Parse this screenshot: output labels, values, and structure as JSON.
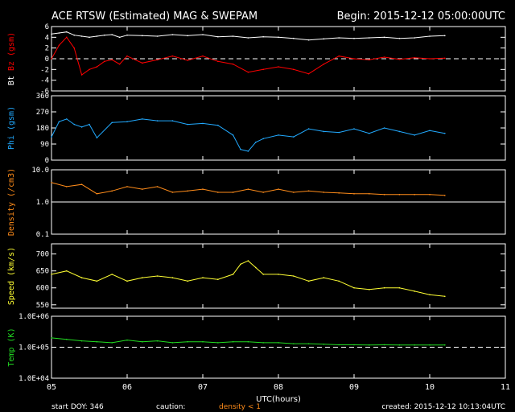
{
  "header": {
    "title": "ACE RTSW (Estimated) MAG & SWEPAM",
    "begin": "Begin: 2015-12-12 05:00:00UTC"
  },
  "footer": {
    "start_doy": "start DOY: 346",
    "caution": "caution:",
    "density_note": "density < 1",
    "created": "created: 2015-12-12 10:13:04UTC"
  },
  "colors": {
    "bt": "#ffffff",
    "bz": "#ff0000",
    "phi": "#22aaff",
    "density": "#ff8c1a",
    "speed": "#ffff33",
    "temp": "#22dd22"
  },
  "chart_data": [
    {
      "type": "line",
      "ylabel": "Bt Bz (gsm)",
      "ylim": [
        -6,
        6
      ],
      "yticks": [
        "-6",
        "-4",
        "-2",
        "0",
        "2",
        "4",
        "6"
      ],
      "x": [
        5.0,
        5.1,
        5.2,
        5.3,
        5.4,
        5.5,
        5.6,
        5.7,
        5.8,
        5.9,
        6.0,
        6.2,
        6.4,
        6.6,
        6.8,
        7.0,
        7.2,
        7.4,
        7.6,
        7.8,
        8.0,
        8.2,
        8.4,
        8.6,
        8.8,
        9.0,
        9.2,
        9.4,
        9.6,
        9.8,
        10.0,
        10.2
      ],
      "series": [
        {
          "name": "Bt",
          "values": [
            4.6,
            4.8,
            5.0,
            4.4,
            4.2,
            4.0,
            4.2,
            4.4,
            4.5,
            4.0,
            4.4,
            4.3,
            4.2,
            4.5,
            4.3,
            4.5,
            4.1,
            4.2,
            3.9,
            4.1,
            4.0,
            3.8,
            3.5,
            3.7,
            3.9,
            3.8,
            3.9,
            4.0,
            3.8,
            3.9,
            4.2,
            4.3
          ]
        },
        {
          "name": "Bz",
          "values": [
            0.0,
            2.5,
            4.0,
            2.0,
            -3.0,
            -2.0,
            -1.5,
            -0.5,
            -0.2,
            -1.0,
            0.5,
            -0.8,
            -0.2,
            0.5,
            -0.3,
            0.5,
            -0.5,
            -1.0,
            -2.5,
            -2.0,
            -1.5,
            -2.0,
            -2.8,
            -1.0,
            0.5,
            0.0,
            -0.2,
            0.3,
            -0.1,
            0.2,
            0.0,
            0.1
          ]
        }
      ]
    },
    {
      "type": "line",
      "ylabel": "Phi (gsm)",
      "ylim": [
        0,
        360
      ],
      "yticks": [
        "0",
        "90",
        "180",
        "270",
        "360"
      ],
      "x": [
        5.0,
        5.1,
        5.2,
        5.3,
        5.4,
        5.5,
        5.6,
        5.8,
        6.0,
        6.2,
        6.4,
        6.6,
        6.8,
        7.0,
        7.2,
        7.4,
        7.5,
        7.6,
        7.7,
        7.8,
        8.0,
        8.2,
        8.4,
        8.6,
        8.8,
        9.0,
        9.2,
        9.4,
        9.6,
        9.8,
        10.0,
        10.2
      ],
      "series": [
        {
          "name": "Phi",
          "values": [
            130,
            215,
            230,
            200,
            185,
            200,
            125,
            210,
            215,
            230,
            220,
            220,
            200,
            205,
            195,
            140,
            60,
            50,
            100,
            120,
            140,
            130,
            175,
            160,
            155,
            175,
            150,
            180,
            160,
            140,
            165,
            150
          ]
        }
      ]
    },
    {
      "type": "line",
      "ylabel": "Density (/cm3)",
      "yscale": "log",
      "ylim": [
        0.1,
        10.0
      ],
      "yticks": [
        "0.1",
        "1.0",
        "10.0"
      ],
      "x": [
        5.0,
        5.2,
        5.4,
        5.6,
        5.8,
        6.0,
        6.2,
        6.4,
        6.6,
        6.8,
        7.0,
        7.2,
        7.4,
        7.6,
        7.8,
        8.0,
        8.2,
        8.4,
        8.6,
        8.8,
        9.0,
        9.2,
        9.4,
        9.6,
        9.8,
        10.0,
        10.2
      ],
      "series": [
        {
          "name": "Density",
          "values": [
            4.0,
            3.0,
            3.5,
            1.8,
            2.2,
            3.0,
            2.5,
            3.0,
            2.0,
            2.2,
            2.5,
            2.0,
            2.0,
            2.5,
            2.0,
            2.5,
            2.0,
            2.2,
            2.0,
            1.9,
            1.8,
            1.8,
            1.7,
            1.7,
            1.7,
            1.7,
            1.6
          ]
        }
      ]
    },
    {
      "type": "line",
      "ylabel": "Speed (km/s)",
      "ylim": [
        540,
        730
      ],
      "yticks": [
        "550",
        "600",
        "650",
        "700"
      ],
      "x": [
        5.0,
        5.2,
        5.4,
        5.6,
        5.8,
        6.0,
        6.2,
        6.4,
        6.6,
        6.8,
        7.0,
        7.2,
        7.4,
        7.5,
        7.6,
        7.7,
        7.8,
        8.0,
        8.2,
        8.4,
        8.6,
        8.8,
        9.0,
        9.2,
        9.4,
        9.6,
        9.8,
        10.0,
        10.2
      ],
      "series": [
        {
          "name": "Speed",
          "values": [
            640,
            650,
            630,
            620,
            640,
            620,
            630,
            635,
            630,
            620,
            630,
            625,
            640,
            670,
            680,
            660,
            640,
            640,
            635,
            620,
            630,
            620,
            600,
            595,
            600,
            600,
            590,
            580,
            575
          ]
        }
      ]
    },
    {
      "type": "line",
      "ylabel": "Temp (K)",
      "yscale": "log",
      "ylim": [
        10000,
        1000000
      ],
      "yticks": [
        "1.0E+04",
        "1.0E+05",
        "1.0E+06"
      ],
      "x": [
        5.0,
        5.2,
        5.4,
        5.6,
        5.8,
        6.0,
        6.2,
        6.4,
        6.6,
        6.8,
        7.0,
        7.2,
        7.4,
        7.6,
        7.8,
        8.0,
        8.2,
        8.4,
        8.6,
        8.8,
        9.0,
        9.2,
        9.4,
        9.6,
        9.8,
        10.0,
        10.2
      ],
      "series": [
        {
          "name": "Temp",
          "values": [
            200000,
            180000,
            160000,
            150000,
            140000,
            170000,
            150000,
            160000,
            140000,
            150000,
            150000,
            140000,
            150000,
            150000,
            140000,
            140000,
            130000,
            130000,
            125000,
            120000,
            120000,
            118000,
            120000,
            118000,
            118000,
            118000,
            118000
          ]
        }
      ]
    }
  ],
  "xaxis": {
    "label": "UTC(hours)",
    "ticks": [
      "05",
      "06",
      "07",
      "08",
      "09",
      "10",
      "11"
    ],
    "xlim": [
      5,
      11
    ]
  }
}
